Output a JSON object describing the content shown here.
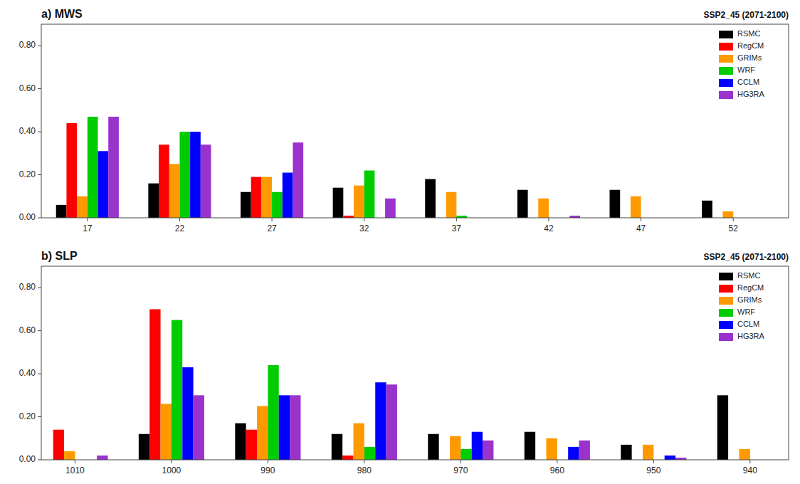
{
  "chart_data": [
    {
      "type": "bar",
      "title": "a) MWS",
      "subtitle": "SSP2_45 (2071-2100)",
      "x": [
        17,
        22,
        27,
        32,
        37,
        42,
        47,
        52
      ],
      "xlim": [
        14.5,
        55.0
      ],
      "xticks": [
        17,
        22,
        27,
        32,
        37,
        42,
        47,
        52
      ],
      "ylim": [
        0,
        0.9
      ],
      "yticks": [
        {
          "value": 0.0,
          "label": "0.00"
        },
        {
          "value": 0.2,
          "label": "0.20"
        },
        {
          "value": 0.4,
          "label": "0.40"
        },
        {
          "value": 0.6,
          "label": "0.60"
        },
        {
          "value": 0.8,
          "label": "0.80"
        }
      ],
      "grid": false,
      "legend": "upper right",
      "series": [
        {
          "name": "RSMC",
          "color": "#000000",
          "values": [
            0.06,
            0.16,
            0.12,
            0.14,
            0.18,
            0.13,
            0.13,
            0.08
          ]
        },
        {
          "name": "RegCM",
          "color": "#ff0000",
          "values": [
            0.44,
            0.34,
            0.19,
            0.01,
            0.0,
            0.0,
            0.0,
            0.0
          ]
        },
        {
          "name": "GRIMs",
          "color": "#ff9900",
          "values": [
            0.1,
            0.25,
            0.19,
            0.15,
            0.12,
            0.09,
            0.1,
            0.03
          ]
        },
        {
          "name": "WRF",
          "color": "#00cc00",
          "values": [
            0.47,
            0.4,
            0.12,
            0.22,
            0.01,
            0.0,
            0.0,
            0.0
          ]
        },
        {
          "name": "CCLM",
          "color": "#0000ff",
          "values": [
            0.31,
            0.4,
            0.21,
            0.0,
            0.0,
            0.0,
            0.0,
            0.0
          ]
        },
        {
          "name": "HG3RA",
          "color": "#9933cc",
          "values": [
            0.47,
            0.34,
            0.35,
            0.09,
            0.0,
            0.01,
            0.0,
            0.0
          ]
        }
      ]
    },
    {
      "type": "bar",
      "title": "b) SLP",
      "subtitle": "SSP2_45 (2071-2100)",
      "x": [
        1010,
        1000,
        990,
        980,
        970,
        960,
        950,
        940
      ],
      "xlim": [
        1013.5,
        936.0
      ],
      "xticks": [
        1010,
        1000,
        990,
        980,
        970,
        960,
        950,
        940
      ],
      "ylim": [
        0,
        0.9
      ],
      "yticks": [
        {
          "value": 0.0,
          "label": "0.00"
        },
        {
          "value": 0.2,
          "label": "0.20"
        },
        {
          "value": 0.4,
          "label": "0.40"
        },
        {
          "value": 0.6,
          "label": "0.60"
        },
        {
          "value": 0.8,
          "label": "0.80"
        }
      ],
      "grid": false,
      "legend": "upper right",
      "series": [
        {
          "name": "RSMC",
          "color": "#000000",
          "values": [
            0.0,
            0.12,
            0.17,
            0.12,
            0.12,
            0.13,
            0.07,
            0.3
          ]
        },
        {
          "name": "RegCM",
          "color": "#ff0000",
          "values": [
            0.14,
            0.7,
            0.14,
            0.02,
            0.0,
            0.0,
            0.0,
            0.0
          ]
        },
        {
          "name": "GRIMs",
          "color": "#ff9900",
          "values": [
            0.04,
            0.26,
            0.25,
            0.17,
            0.11,
            0.1,
            0.07,
            0.05
          ]
        },
        {
          "name": "WRF",
          "color": "#00cc00",
          "values": [
            0.0,
            0.65,
            0.44,
            0.06,
            0.05,
            0.0,
            0.0,
            0.0
          ]
        },
        {
          "name": "CCLM",
          "color": "#0000ff",
          "values": [
            0.0,
            0.43,
            0.3,
            0.36,
            0.13,
            0.06,
            0.02,
            0.0
          ]
        },
        {
          "name": "HG3RA",
          "color": "#9933cc",
          "values": [
            0.02,
            0.3,
            0.3,
            0.35,
            0.09,
            0.09,
            0.01,
            0.0
          ]
        }
      ]
    }
  ]
}
